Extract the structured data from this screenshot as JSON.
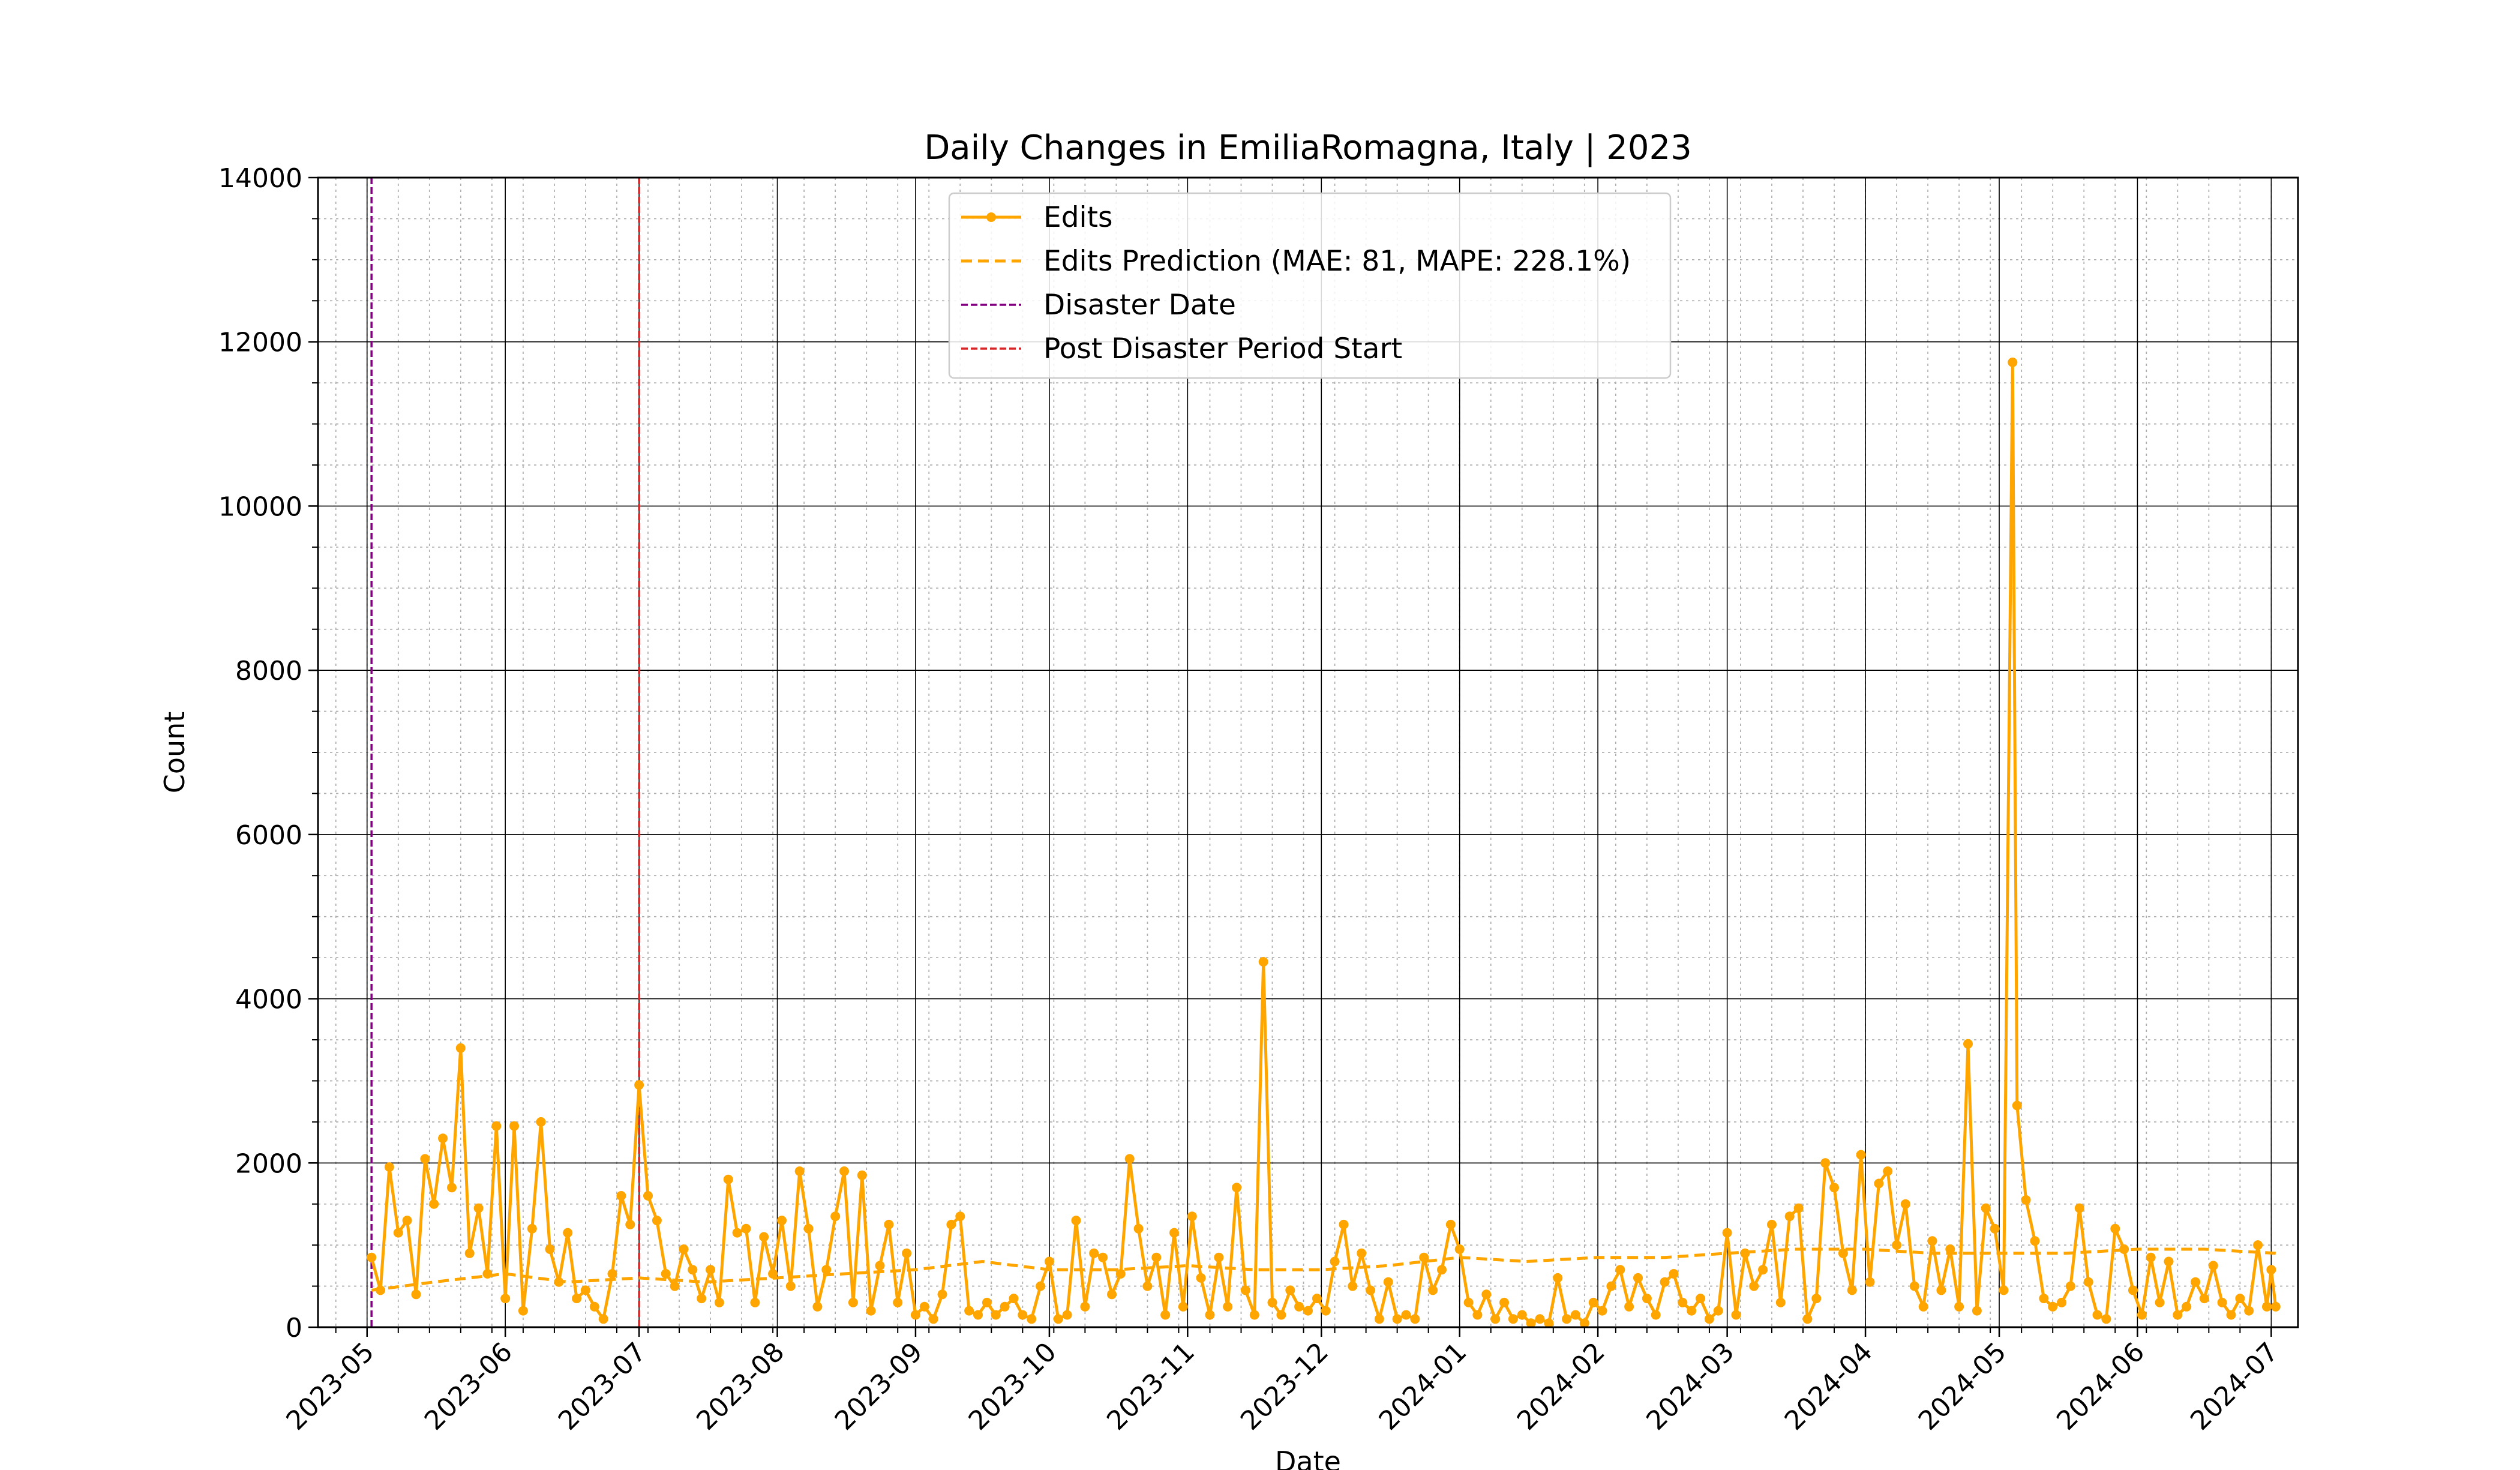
{
  "chart_data": {
    "type": "line",
    "title": "Daily Changes in EmiliaRomagna, Italy | 2023",
    "xlabel": "Date",
    "ylabel": "Count",
    "ylim": [
      0,
      14000
    ],
    "xlim": [
      "2023-04-20",
      "2024-07-07"
    ],
    "grid": true,
    "legend_position": "top-center",
    "x_ticks": [
      "2023-05",
      "2023-06",
      "2023-07",
      "2023-08",
      "2023-09",
      "2023-10",
      "2023-11",
      "2023-12",
      "2024-01",
      "2024-02",
      "2024-03",
      "2024-04",
      "2024-05",
      "2024-06",
      "2024-07"
    ],
    "y_ticks": [
      "0",
      "2000",
      "4000",
      "6000",
      "8000",
      "10000",
      "12000",
      "14000"
    ],
    "colors": {
      "edits": "#FFA500",
      "prediction": "#FFA500",
      "disaster": "#800080",
      "post": "#D62728"
    },
    "legend": [
      "Edits",
      "Edits Prediction (MAE: 81, MAPE: 228.1%)",
      "Disaster Date",
      "Post Disaster Period Start"
    ],
    "vertical_lines": [
      {
        "name": "Disaster Date",
        "date": "2023-05-02"
      },
      {
        "name": "Post Disaster Period Start",
        "date": "2023-07-01"
      }
    ],
    "series": [
      {
        "name": "Edits",
        "style": "solid-markers",
        "points": [
          [
            "2023-05-02",
            850
          ],
          [
            "2023-05-04",
            450
          ],
          [
            "2023-05-06",
            1950
          ],
          [
            "2023-05-08",
            1150
          ],
          [
            "2023-05-10",
            1300
          ],
          [
            "2023-05-12",
            400
          ],
          [
            "2023-05-14",
            2050
          ],
          [
            "2023-05-16",
            1500
          ],
          [
            "2023-05-18",
            2300
          ],
          [
            "2023-05-20",
            1700
          ],
          [
            "2023-05-22",
            3400
          ],
          [
            "2023-05-24",
            900
          ],
          [
            "2023-05-26",
            1450
          ],
          [
            "2023-05-28",
            650
          ],
          [
            "2023-05-30",
            2450
          ],
          [
            "2023-06-01",
            350
          ],
          [
            "2023-06-03",
            2450
          ],
          [
            "2023-06-05",
            200
          ],
          [
            "2023-06-07",
            1200
          ],
          [
            "2023-06-09",
            2500
          ],
          [
            "2023-06-11",
            950
          ],
          [
            "2023-06-13",
            550
          ],
          [
            "2023-06-15",
            1150
          ],
          [
            "2023-06-17",
            350
          ],
          [
            "2023-06-19",
            450
          ],
          [
            "2023-06-21",
            250
          ],
          [
            "2023-06-23",
            100
          ],
          [
            "2023-06-25",
            650
          ],
          [
            "2023-06-27",
            1600
          ],
          [
            "2023-06-29",
            1250
          ],
          [
            "2023-07-01",
            2950
          ],
          [
            "2023-07-03",
            1600
          ],
          [
            "2023-07-05",
            1300
          ],
          [
            "2023-07-07",
            650
          ],
          [
            "2023-07-09",
            500
          ],
          [
            "2023-07-11",
            950
          ],
          [
            "2023-07-13",
            700
          ],
          [
            "2023-07-15",
            350
          ],
          [
            "2023-07-17",
            700
          ],
          [
            "2023-07-19",
            300
          ],
          [
            "2023-07-21",
            1800
          ],
          [
            "2023-07-23",
            1150
          ],
          [
            "2023-07-25",
            1200
          ],
          [
            "2023-07-27",
            300
          ],
          [
            "2023-07-29",
            1100
          ],
          [
            "2023-07-31",
            650
          ],
          [
            "2023-08-02",
            1300
          ],
          [
            "2023-08-04",
            500
          ],
          [
            "2023-08-06",
            1900
          ],
          [
            "2023-08-08",
            1200
          ],
          [
            "2023-08-10",
            250
          ],
          [
            "2023-08-12",
            700
          ],
          [
            "2023-08-14",
            1350
          ],
          [
            "2023-08-16",
            1900
          ],
          [
            "2023-08-18",
            300
          ],
          [
            "2023-08-20",
            1850
          ],
          [
            "2023-08-22",
            200
          ],
          [
            "2023-08-24",
            750
          ],
          [
            "2023-08-26",
            1250
          ],
          [
            "2023-08-28",
            300
          ],
          [
            "2023-08-30",
            900
          ],
          [
            "2023-09-01",
            150
          ],
          [
            "2023-09-03",
            250
          ],
          [
            "2023-09-05",
            100
          ],
          [
            "2023-09-07",
            400
          ],
          [
            "2023-09-09",
            1250
          ],
          [
            "2023-09-11",
            1350
          ],
          [
            "2023-09-13",
            200
          ],
          [
            "2023-09-15",
            150
          ],
          [
            "2023-09-17",
            300
          ],
          [
            "2023-09-19",
            150
          ],
          [
            "2023-09-21",
            250
          ],
          [
            "2023-09-23",
            350
          ],
          [
            "2023-09-25",
            150
          ],
          [
            "2023-09-27",
            100
          ],
          [
            "2023-09-29",
            500
          ],
          [
            "2023-10-01",
            800
          ],
          [
            "2023-10-03",
            100
          ],
          [
            "2023-10-05",
            150
          ],
          [
            "2023-10-07",
            1300
          ],
          [
            "2023-10-09",
            250
          ],
          [
            "2023-10-11",
            900
          ],
          [
            "2023-10-13",
            850
          ],
          [
            "2023-10-15",
            400
          ],
          [
            "2023-10-17",
            650
          ],
          [
            "2023-10-19",
            2050
          ],
          [
            "2023-10-21",
            1200
          ],
          [
            "2023-10-23",
            500
          ],
          [
            "2023-10-25",
            850
          ],
          [
            "2023-10-27",
            150
          ],
          [
            "2023-10-29",
            1150
          ],
          [
            "2023-10-31",
            250
          ],
          [
            "2023-11-02",
            1350
          ],
          [
            "2023-11-04",
            600
          ],
          [
            "2023-11-06",
            150
          ],
          [
            "2023-11-08",
            850
          ],
          [
            "2023-11-10",
            250
          ],
          [
            "2023-11-12",
            1700
          ],
          [
            "2023-11-14",
            450
          ],
          [
            "2023-11-16",
            150
          ],
          [
            "2023-11-18",
            4450
          ],
          [
            "2023-11-20",
            300
          ],
          [
            "2023-11-22",
            150
          ],
          [
            "2023-11-24",
            450
          ],
          [
            "2023-11-26",
            250
          ],
          [
            "2023-11-28",
            200
          ],
          [
            "2023-11-30",
            350
          ],
          [
            "2023-12-02",
            200
          ],
          [
            "2023-12-04",
            800
          ],
          [
            "2023-12-06",
            1250
          ],
          [
            "2023-12-08",
            500
          ],
          [
            "2023-12-10",
            900
          ],
          [
            "2023-12-12",
            450
          ],
          [
            "2023-12-14",
            100
          ],
          [
            "2023-12-16",
            550
          ],
          [
            "2023-12-18",
            100
          ],
          [
            "2023-12-20",
            150
          ],
          [
            "2023-12-22",
            100
          ],
          [
            "2023-12-24",
            850
          ],
          [
            "2023-12-26",
            450
          ],
          [
            "2023-12-28",
            700
          ],
          [
            "2023-12-30",
            1250
          ],
          [
            "2024-01-01",
            950
          ],
          [
            "2024-01-03",
            300
          ],
          [
            "2024-01-05",
            150
          ],
          [
            "2024-01-07",
            400
          ],
          [
            "2024-01-09",
            100
          ],
          [
            "2024-01-11",
            300
          ],
          [
            "2024-01-13",
            100
          ],
          [
            "2024-01-15",
            150
          ],
          [
            "2024-01-17",
            50
          ],
          [
            "2024-01-19",
            100
          ],
          [
            "2024-01-21",
            50
          ],
          [
            "2024-01-23",
            600
          ],
          [
            "2024-01-25",
            100
          ],
          [
            "2024-01-27",
            150
          ],
          [
            "2024-01-29",
            50
          ],
          [
            "2024-01-31",
            300
          ],
          [
            "2024-02-02",
            200
          ],
          [
            "2024-02-04",
            500
          ],
          [
            "2024-02-06",
            700
          ],
          [
            "2024-02-08",
            250
          ],
          [
            "2024-02-10",
            600
          ],
          [
            "2024-02-12",
            350
          ],
          [
            "2024-02-14",
            150
          ],
          [
            "2024-02-16",
            550
          ],
          [
            "2024-02-18",
            650
          ],
          [
            "2024-02-20",
            300
          ],
          [
            "2024-02-22",
            200
          ],
          [
            "2024-02-24",
            350
          ],
          [
            "2024-02-26",
            100
          ],
          [
            "2024-02-28",
            200
          ],
          [
            "2024-03-01",
            1150
          ],
          [
            "2024-03-03",
            150
          ],
          [
            "2024-03-05",
            900
          ],
          [
            "2024-03-07",
            500
          ],
          [
            "2024-03-09",
            700
          ],
          [
            "2024-03-11",
            1250
          ],
          [
            "2024-03-13",
            300
          ],
          [
            "2024-03-15",
            1350
          ],
          [
            "2024-03-17",
            1450
          ],
          [
            "2024-03-19",
            100
          ],
          [
            "2024-03-21",
            350
          ],
          [
            "2024-03-23",
            2000
          ],
          [
            "2024-03-25",
            1700
          ],
          [
            "2024-03-27",
            900
          ],
          [
            "2024-03-29",
            450
          ],
          [
            "2024-03-31",
            2100
          ],
          [
            "2024-04-02",
            550
          ],
          [
            "2024-04-04",
            1750
          ],
          [
            "2024-04-06",
            1900
          ],
          [
            "2024-04-08",
            1000
          ],
          [
            "2024-04-10",
            1500
          ],
          [
            "2024-04-12",
            500
          ],
          [
            "2024-04-14",
            250
          ],
          [
            "2024-04-16",
            1050
          ],
          [
            "2024-04-18",
            450
          ],
          [
            "2024-04-20",
            950
          ],
          [
            "2024-04-22",
            250
          ],
          [
            "2024-04-24",
            3450
          ],
          [
            "2024-04-26",
            200
          ],
          [
            "2024-04-28",
            1450
          ],
          [
            "2024-04-30",
            1200
          ],
          [
            "2024-05-02",
            450
          ],
          [
            "2024-05-04",
            11750
          ],
          [
            "2024-05-05",
            2700
          ],
          [
            "2024-05-07",
            1550
          ],
          [
            "2024-05-09",
            1050
          ],
          [
            "2024-05-11",
            350
          ],
          [
            "2024-05-13",
            250
          ],
          [
            "2024-05-15",
            300
          ],
          [
            "2024-05-17",
            500
          ],
          [
            "2024-05-19",
            1450
          ],
          [
            "2024-05-21",
            550
          ],
          [
            "2024-05-23",
            150
          ],
          [
            "2024-05-25",
            100
          ],
          [
            "2024-05-27",
            1200
          ],
          [
            "2024-05-29",
            950
          ],
          [
            "2024-05-31",
            450
          ],
          [
            "2024-06-02",
            150
          ],
          [
            "2024-06-04",
            850
          ],
          [
            "2024-06-06",
            300
          ],
          [
            "2024-06-08",
            800
          ],
          [
            "2024-06-10",
            150
          ],
          [
            "2024-06-12",
            250
          ],
          [
            "2024-06-14",
            550
          ],
          [
            "2024-06-16",
            350
          ],
          [
            "2024-06-18",
            750
          ],
          [
            "2024-06-20",
            300
          ],
          [
            "2024-06-22",
            150
          ],
          [
            "2024-06-24",
            350
          ],
          [
            "2024-06-26",
            200
          ],
          [
            "2024-06-28",
            1000
          ],
          [
            "2024-06-30",
            250
          ],
          [
            "2024-07-01",
            700
          ],
          [
            "2024-07-02",
            250
          ]
        ]
      },
      {
        "name": "Edits Prediction (MAE: 81, MAPE: 228.1%)",
        "style": "dashed",
        "points": [
          [
            "2023-05-02",
            450
          ],
          [
            "2023-05-16",
            550
          ],
          [
            "2023-06-01",
            650
          ],
          [
            "2023-06-15",
            550
          ],
          [
            "2023-07-01",
            600
          ],
          [
            "2023-07-16",
            550
          ],
          [
            "2023-08-01",
            600
          ],
          [
            "2023-08-16",
            650
          ],
          [
            "2023-09-01",
            700
          ],
          [
            "2023-09-16",
            800
          ],
          [
            "2023-10-01",
            700
          ],
          [
            "2023-10-16",
            700
          ],
          [
            "2023-11-01",
            750
          ],
          [
            "2023-11-16",
            700
          ],
          [
            "2023-12-01",
            700
          ],
          [
            "2023-12-16",
            750
          ],
          [
            "2024-01-01",
            850
          ],
          [
            "2024-01-16",
            800
          ],
          [
            "2024-02-01",
            850
          ],
          [
            "2024-02-16",
            850
          ],
          [
            "2024-03-01",
            900
          ],
          [
            "2024-03-16",
            950
          ],
          [
            "2024-04-01",
            950
          ],
          [
            "2024-04-16",
            900
          ],
          [
            "2024-05-01",
            900
          ],
          [
            "2024-05-16",
            900
          ],
          [
            "2024-06-01",
            950
          ],
          [
            "2024-06-16",
            950
          ],
          [
            "2024-07-02",
            900
          ]
        ]
      }
    ]
  }
}
